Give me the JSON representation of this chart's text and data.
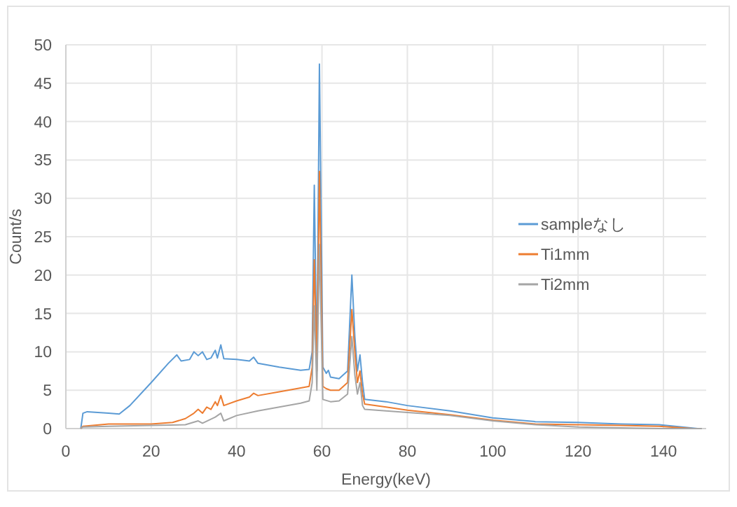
{
  "chart_data": {
    "type": "line",
    "xlabel": "Energy(keV)",
    "ylabel": "Count/s",
    "xlim": [
      0,
      150
    ],
    "xticks": [
      0,
      20,
      40,
      60,
      80,
      100,
      120,
      140
    ],
    "ylim": [
      0,
      50
    ],
    "yticks": [
      0,
      5,
      10,
      15,
      20,
      25,
      30,
      35,
      40,
      45,
      50
    ],
    "grid": true,
    "legend": "right",
    "marker": "none",
    "line_style": "solid",
    "series": [
      {
        "name": "sampleなし",
        "color": "#5b9bd5",
        "x": [
          3.5,
          4,
          5,
          10,
          12.5,
          15,
          20,
          24,
          26,
          27,
          29,
          30,
          31,
          32,
          33,
          34,
          35,
          35.5,
          36.3,
          37,
          40,
          43,
          44,
          45,
          50,
          55,
          57,
          57.7,
          58.2,
          58.8,
          59.4,
          60.2,
          61,
          61.5,
          62,
          64,
          66,
          67,
          67.7,
          68.3,
          68.9,
          69.5,
          70,
          75,
          80,
          90,
          100,
          110,
          120,
          130,
          139,
          148
        ],
        "values": [
          0,
          2,
          2.2,
          2,
          1.9,
          3,
          6,
          8.5,
          9.6,
          8.8,
          9,
          10,
          9.5,
          10,
          9,
          9.2,
          10.2,
          9.2,
          10.9,
          9.1,
          9,
          8.8,
          9.3,
          8.5,
          8,
          7.6,
          7.7,
          10,
          31.7,
          7.5,
          47.5,
          8,
          7.2,
          7.6,
          6.7,
          6.5,
          7.5,
          20,
          12,
          7.5,
          9.6,
          6,
          3.8,
          3.5,
          3,
          2.3,
          1.4,
          0.9,
          0.8,
          0.6,
          0.5,
          0
        ]
      },
      {
        "name": "Ti1mm",
        "color": "#ed7d31",
        "x": [
          3.5,
          4,
          10,
          20,
          25,
          28,
          30,
          31,
          32,
          33,
          34,
          35,
          35.5,
          36.3,
          37,
          40,
          43,
          44,
          45,
          50,
          55,
          57,
          57.7,
          58.2,
          58.8,
          59.4,
          60.2,
          61,
          62,
          64,
          66,
          67,
          67.7,
          68.3,
          68.9,
          69.5,
          70,
          75,
          80,
          90,
          100,
          110,
          120,
          130,
          139,
          147
        ],
        "values": [
          0,
          0.3,
          0.6,
          0.6,
          0.8,
          1.3,
          2,
          2.5,
          2,
          2.8,
          2.5,
          3.5,
          3,
          4.3,
          3,
          3.6,
          4.1,
          4.6,
          4.3,
          4.8,
          5.3,
          5.5,
          8,
          22,
          7.5,
          33.5,
          5.5,
          5.2,
          5,
          5,
          6,
          15.5,
          10,
          6,
          7.5,
          4.5,
          3.2,
          2.8,
          2.4,
          1.8,
          1.1,
          0.6,
          0.5,
          0.4,
          0.3,
          0
        ]
      },
      {
        "name": "Ti2mm",
        "color": "#a5a5a5",
        "x": [
          3.5,
          4,
          10,
          20,
          28,
          31,
          32,
          35,
          36.3,
          37,
          40,
          45,
          50,
          55,
          57,
          57.7,
          58.2,
          58.8,
          59.4,
          60.2,
          62,
          64,
          66,
          67,
          67.7,
          68.3,
          68.9,
          69.5,
          70,
          80,
          90,
          100,
          110,
          120,
          130,
          139,
          149
        ],
        "values": [
          0,
          0.2,
          0.3,
          0.4,
          0.5,
          1,
          0.7,
          1.5,
          2,
          1,
          1.7,
          2.3,
          2.8,
          3.3,
          3.6,
          6,
          16,
          5,
          24,
          3.8,
          3.5,
          3.6,
          4.5,
          12,
          7,
          4.5,
          6,
          3,
          2.5,
          2.1,
          1.7,
          1,
          0.5,
          0.2,
          0.1,
          0,
          0
        ]
      }
    ]
  }
}
